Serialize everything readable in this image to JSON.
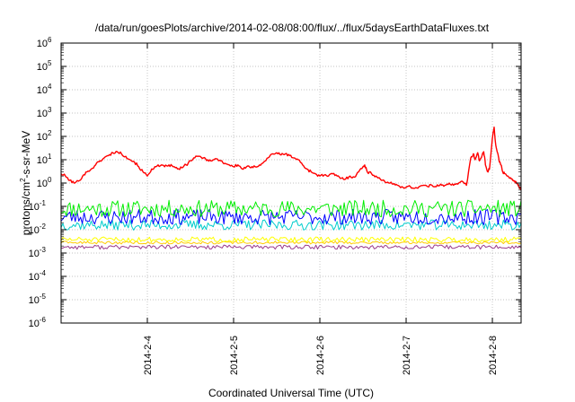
{
  "chart_data": {
    "type": "line",
    "title": "/data/run/goesPlots/archive/2014-02-08/08:00/flux/../flux/5daysEarthDataFluxes.txt",
    "xlabel": "Coordinated Universal Time (UTC)",
    "ylabel": {
      "base": "protons/cm",
      "exp": "2",
      "rest": "-s-sr-MeV"
    },
    "yscale": "log",
    "ylim_exp": [
      -6,
      6
    ],
    "y_ticks": [
      {
        "base": "10",
        "exp": "-6",
        "e": -6
      },
      {
        "base": "10",
        "exp": "-5",
        "e": -5
      },
      {
        "base": "10",
        "exp": "-4",
        "e": -4
      },
      {
        "base": "10",
        "exp": "-3",
        "e": -3
      },
      {
        "base": "10",
        "exp": "-2",
        "e": -2
      },
      {
        "base": "10",
        "exp": "-1",
        "e": -1
      },
      {
        "base": "10",
        "exp": "0",
        "e": 0
      },
      {
        "base": "10",
        "exp": "1",
        "e": 1
      },
      {
        "base": "10",
        "exp": "2",
        "e": 2
      },
      {
        "base": "10",
        "exp": "3",
        "e": 3
      },
      {
        "base": "10",
        "exp": "4",
        "e": 4
      },
      {
        "base": "10",
        "exp": "5",
        "e": 5
      },
      {
        "base": "10",
        "exp": "6",
        "e": 6
      }
    ],
    "xlim": [
      "2014-02-03 00:00",
      "2014-02-08 08:00"
    ],
    "x_ticks": [
      {
        "label": "2014-2-4",
        "day": 1
      },
      {
        "label": "2014-2-5",
        "day": 2
      },
      {
        "label": "2014-2-6",
        "day": 3
      },
      {
        "label": "2014-2-7",
        "day": 4
      },
      {
        "label": "2014-2-8",
        "day": 5
      }
    ],
    "x_range_days": [
      0,
      5.333
    ],
    "grid": true,
    "legend": "none",
    "series": [
      {
        "color": "#ff0000",
        "points": [
          [
            0.0,
            2.5
          ],
          [
            0.05,
            2.0
          ],
          [
            0.1,
            1.3
          ],
          [
            0.15,
            1.0
          ],
          [
            0.2,
            1.2
          ],
          [
            0.25,
            2.0
          ],
          [
            0.3,
            3.0
          ],
          [
            0.35,
            4.0
          ],
          [
            0.4,
            6.0
          ],
          [
            0.45,
            9.0
          ],
          [
            0.5,
            12
          ],
          [
            0.55,
            15
          ],
          [
            0.6,
            20
          ],
          [
            0.65,
            22
          ],
          [
            0.7,
            18
          ],
          [
            0.75,
            14
          ],
          [
            0.8,
            10
          ],
          [
            0.85,
            8
          ],
          [
            0.9,
            5
          ],
          [
            0.95,
            3
          ],
          [
            1.0,
            2.0
          ],
          [
            1.05,
            4.0
          ],
          [
            1.1,
            5.0
          ],
          [
            1.15,
            5.5
          ],
          [
            1.2,
            5.0
          ],
          [
            1.25,
            6.0
          ],
          [
            1.3,
            5.0
          ],
          [
            1.35,
            4.0
          ],
          [
            1.4,
            4.5
          ],
          [
            1.45,
            6.0
          ],
          [
            1.5,
            9.0
          ],
          [
            1.55,
            12
          ],
          [
            1.6,
            14
          ],
          [
            1.65,
            12
          ],
          [
            1.7,
            10
          ],
          [
            1.75,
            9.0
          ],
          [
            1.8,
            11
          ],
          [
            1.85,
            9.0
          ],
          [
            1.9,
            7.0
          ],
          [
            1.95,
            6.0
          ],
          [
            2.0,
            5.0
          ],
          [
            2.05,
            6.0
          ],
          [
            2.1,
            4.0
          ],
          [
            2.15,
            5.0
          ],
          [
            2.2,
            4.5
          ],
          [
            2.25,
            5.0
          ],
          [
            2.3,
            6.0
          ],
          [
            2.35,
            8.0
          ],
          [
            2.4,
            12
          ],
          [
            2.45,
            18
          ],
          [
            2.5,
            20
          ],
          [
            2.55,
            16
          ],
          [
            2.6,
            18
          ],
          [
            2.65,
            15
          ],
          [
            2.7,
            12
          ],
          [
            2.75,
            10
          ],
          [
            2.8,
            6.0
          ],
          [
            2.85,
            4.0
          ],
          [
            2.9,
            3.0
          ],
          [
            2.95,
            2.5
          ],
          [
            3.0,
            2.0
          ],
          [
            3.05,
            2.2
          ],
          [
            3.1,
            2.0
          ],
          [
            3.15,
            2.5
          ],
          [
            3.2,
            2.0
          ],
          [
            3.25,
            1.6
          ],
          [
            3.3,
            1.5
          ],
          [
            3.35,
            2.0
          ],
          [
            3.4,
            1.8
          ],
          [
            3.45,
            3.0
          ],
          [
            3.5,
            5.0
          ],
          [
            3.52,
            6.0
          ],
          [
            3.55,
            3.0
          ],
          [
            3.6,
            2.5
          ],
          [
            3.65,
            2.0
          ],
          [
            3.7,
            1.5
          ],
          [
            3.75,
            1.2
          ],
          [
            3.8,
            1.0
          ],
          [
            3.85,
            0.9
          ],
          [
            3.9,
            0.8
          ],
          [
            3.95,
            0.7
          ],
          [
            4.0,
            0.65
          ],
          [
            4.05,
            0.7
          ],
          [
            4.1,
            0.6
          ],
          [
            4.15,
            0.7
          ],
          [
            4.2,
            0.8
          ],
          [
            4.25,
            0.7
          ],
          [
            4.3,
            0.8
          ],
          [
            4.35,
            0.7
          ],
          [
            4.4,
            0.9
          ],
          [
            4.45,
            0.8
          ],
          [
            4.5,
            1.0
          ],
          [
            4.55,
            0.8
          ],
          [
            4.6,
            0.9
          ],
          [
            4.65,
            1.2
          ],
          [
            4.7,
            0.8
          ],
          [
            4.75,
            12
          ],
          [
            4.78,
            18
          ],
          [
            4.8,
            10
          ],
          [
            4.83,
            20
          ],
          [
            4.85,
            9.0
          ],
          [
            4.88,
            15
          ],
          [
            4.9,
            22
          ],
          [
            4.92,
            6.0
          ],
          [
            4.95,
            3.0
          ],
          [
            4.97,
            5.0
          ],
          [
            5.0,
            80
          ],
          [
            5.02,
            250
          ],
          [
            5.04,
            40
          ],
          [
            5.06,
            20
          ],
          [
            5.08,
            8.0
          ],
          [
            5.1,
            6.0
          ],
          [
            5.12,
            3.0
          ],
          [
            5.15,
            2.5
          ],
          [
            5.18,
            2.0
          ],
          [
            5.22,
            1.5
          ],
          [
            5.25,
            1.2
          ],
          [
            5.28,
            1.0
          ],
          [
            5.31,
            0.7
          ],
          [
            5.333,
            0.5
          ]
        ]
      },
      {
        "color": "#00ee00",
        "level": 0.08,
        "jitter": 0.36,
        "seed": 11
      },
      {
        "color": "#0000ff",
        "level": 0.035,
        "jitter": 0.33,
        "seed": 23
      },
      {
        "color": "#00cccc",
        "level": 0.016,
        "jitter": 0.22,
        "seed": 37
      },
      {
        "color": "#ffff00",
        "level": 0.0038,
        "jitter": 0.11,
        "seed": 51
      },
      {
        "color": "#ffcc00",
        "level": 0.0028,
        "jitter": 0.06,
        "seed": 63
      },
      {
        "color": "#9b3b8c",
        "level": 0.0018,
        "jitter": 0.09,
        "seed": 77
      }
    ]
  }
}
